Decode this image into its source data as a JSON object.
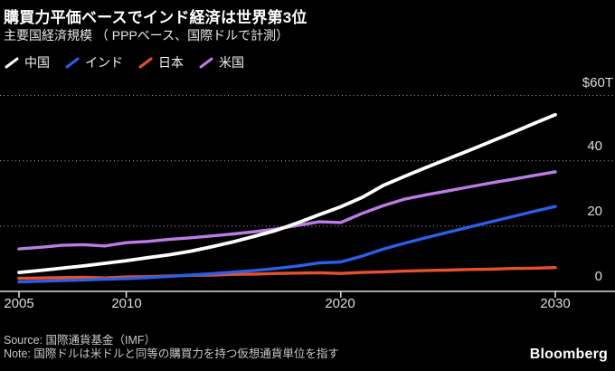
{
  "header": {
    "title": "購買力平価ベースでインド経済は世界第3位",
    "subtitle": "主要国経済規模 （ PPPベース、国際ドルで計測）"
  },
  "footer": {
    "source": "Source: 国際通貨基金（IMF）",
    "note": "Note: 国際ドルは米ドルと同等の購買力を持つ仮想通貨単位を指す",
    "brand": "Bloomberg"
  },
  "chart_data": {
    "type": "line",
    "title": "主要国経済規模（PPPベース、国際ドルで計測）",
    "unit": "trillions of international dollars (PPP)",
    "grid": "horizontal-dotted",
    "legend_position": "top-left",
    "x": [
      2005,
      2006,
      2007,
      2008,
      2009,
      2010,
      2011,
      2012,
      2013,
      2014,
      2015,
      2016,
      2017,
      2018,
      2019,
      2020,
      2021,
      2022,
      2023,
      2024,
      2025,
      2026,
      2027,
      2028,
      2029,
      2030
    ],
    "series": [
      {
        "name": "中国",
        "color": "#ffffff",
        "values": [
          5.8,
          6.4,
          7.1,
          7.8,
          8.6,
          9.4,
          10.3,
          11.2,
          12.3,
          13.7,
          15.2,
          16.9,
          18.7,
          21.0,
          23.5,
          25.9,
          28.8,
          32.5,
          35.3,
          38.0,
          40.6,
          43.2,
          45.9,
          48.6,
          51.4,
          54.1
        ]
      },
      {
        "name": "インド",
        "color": "#2a5fe8",
        "values": [
          2.9,
          3.1,
          3.3,
          3.5,
          3.7,
          3.9,
          4.2,
          4.6,
          5.0,
          5.4,
          5.9,
          6.4,
          7.0,
          7.8,
          8.7,
          9.0,
          10.8,
          13.0,
          14.8,
          16.5,
          18.1,
          19.7,
          21.3,
          22.9,
          24.5,
          26.0
        ]
      },
      {
        "name": "日本",
        "color": "#e8502a",
        "values": [
          4.0,
          4.1,
          4.2,
          4.3,
          4.1,
          4.4,
          4.5,
          4.7,
          4.9,
          5.0,
          5.2,
          5.3,
          5.5,
          5.6,
          5.7,
          5.5,
          5.8,
          6.0,
          6.2,
          6.4,
          6.5,
          6.7,
          6.8,
          7.0,
          7.1,
          7.3
        ]
      },
      {
        "name": "米国",
        "color": "#b97de4",
        "values": [
          13.0,
          13.5,
          14.1,
          14.3,
          13.9,
          14.9,
          15.3,
          15.9,
          16.4,
          17.0,
          17.6,
          18.3,
          19.1,
          20.2,
          21.3,
          21.1,
          23.9,
          26.3,
          28.3,
          29.6,
          30.8,
          32.0,
          33.2,
          34.3,
          35.5,
          36.6
        ]
      }
    ],
    "ylim": [
      0,
      60
    ],
    "yticks": [
      60,
      40,
      20,
      0
    ],
    "ytick_labels": [
      "$60T",
      "40",
      "20",
      "0"
    ],
    "xticks": [
      2005,
      2010,
      2020,
      2030
    ],
    "xtick_labels": [
      "2005",
      "2010",
      "2020",
      "2030"
    ]
  }
}
